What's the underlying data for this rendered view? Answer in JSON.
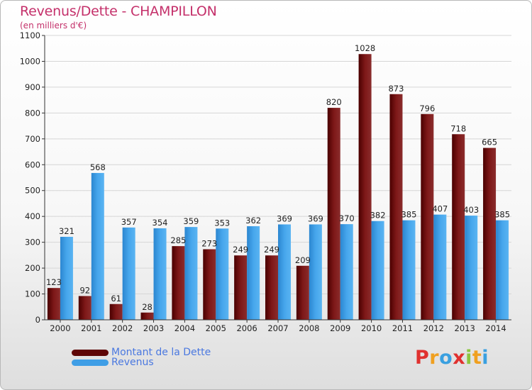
{
  "title": "Revenus/Dette - CHAMPILLON",
  "subtitle": "(en milliers d'€)",
  "legend": [
    {
      "name": "Montant de la Dette",
      "color": "#6b0a0a"
    },
    {
      "name": "Revenus",
      "color": "#3f9ee6"
    }
  ],
  "logo": {
    "letters": [
      "P",
      "r",
      "o",
      "x",
      "i",
      "t",
      "i"
    ],
    "colors": [
      "#e0312f",
      "#f0a020",
      "#3aa0e0",
      "#e0312f",
      "#8cc63f",
      "#f0a020",
      "#3aa0e0"
    ]
  },
  "chart_data": {
    "type": "bar",
    "categories": [
      "2000",
      "2001",
      "2002",
      "2003",
      "2004",
      "2005",
      "2006",
      "2007",
      "2008",
      "2009",
      "2010",
      "2011",
      "2012",
      "2013",
      "2014"
    ],
    "series": [
      {
        "name": "Montant de la Dette",
        "values": [
          123,
          92,
          61,
          28,
          285,
          273,
          249,
          249,
          209,
          820,
          1028,
          873,
          796,
          718,
          665
        ]
      },
      {
        "name": "Revenus",
        "values": [
          321,
          568,
          357,
          354,
          359,
          353,
          362,
          369,
          369,
          370,
          382,
          385,
          407,
          403,
          385
        ]
      }
    ],
    "yticks": [
      0,
      100,
      200,
      300,
      400,
      500,
      600,
      700,
      800,
      900,
      1000,
      1100
    ],
    "ylim": [
      0,
      1100
    ],
    "grid": true,
    "legend_position": "bottom-left"
  }
}
